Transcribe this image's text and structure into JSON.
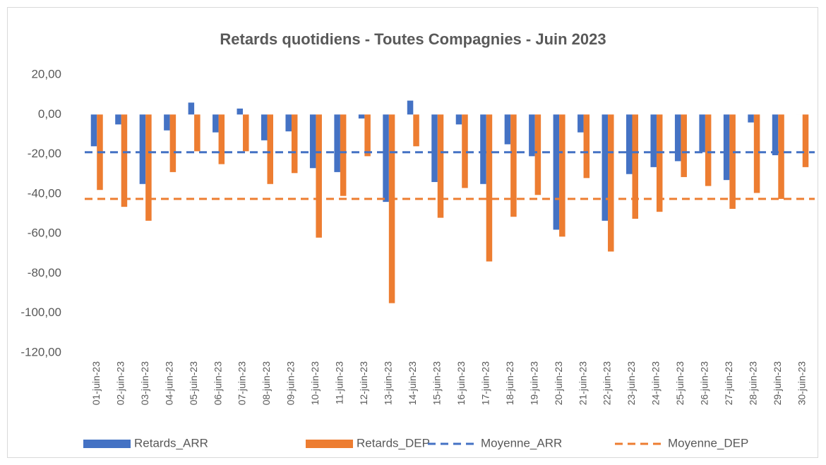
{
  "chart_data": {
    "type": "bar",
    "title": "Retards quotidiens - Toutes Compagnies - Juin 2023",
    "categories": [
      "01-juin-23",
      "02-juin-23",
      "03-juin-23",
      "04-juin-23",
      "05-juin-23",
      "06-juin-23",
      "07-juin-23",
      "08-juin-23",
      "09-juin-23",
      "10-juin-23",
      "11-juin-23",
      "12-juin-23",
      "13-juin-23",
      "14-juin-23",
      "15-juin-23",
      "16-juin-23",
      "17-juin-23",
      "18-juin-23",
      "19-juin-23",
      "20-juin-23",
      "21-juin-23",
      "22-juin-23",
      "23-juin-23",
      "24-juin-23",
      "25-juin-23",
      "26-juin-23",
      "27-juin-23",
      "28-juin-23",
      "29-juin-23",
      "30-juin-23"
    ],
    "series": [
      {
        "name": "Retards_ARR",
        "type": "bar",
        "color": "#4472c4",
        "values": [
          -16,
          -5,
          -35,
          -8,
          6,
          -9,
          3,
          -13,
          -8.5,
          -27,
          -29,
          -2,
          -44,
          7,
          -34,
          -5,
          -35,
          -15,
          -21,
          -58,
          -9,
          -53.5,
          -30,
          -26.5,
          -23.5,
          -19,
          -33,
          -4,
          -20.5,
          0
        ]
      },
      {
        "name": "Retards_DEP",
        "type": "bar",
        "color": "#ed7d31",
        "values": [
          -38,
          -46.5,
          -53.5,
          -29,
          -18.5,
          -25,
          -18.5,
          -35,
          -29.5,
          -62,
          -41,
          -21,
          -95,
          -16,
          -52,
          -37,
          -74,
          -51.5,
          -40.5,
          -61.5,
          -32,
          -69,
          -52.5,
          -49,
          -31.5,
          -36,
          -47.5,
          -39.5,
          -42.5,
          -26.5
        ]
      },
      {
        "name": "Moyenne_ARR",
        "type": "line",
        "dashed": true,
        "color": "#4472c4",
        "values": [
          -19,
          -19,
          -19,
          -19,
          -19,
          -19,
          -19,
          -19,
          -19,
          -19,
          -19,
          -19,
          -19,
          -19,
          -19,
          -19,
          -19,
          -19,
          -19,
          -19,
          -19,
          -19,
          -19,
          -19,
          -19,
          -19,
          -19,
          -19,
          -19,
          -19
        ]
      },
      {
        "name": "Moyenne_DEP",
        "type": "line",
        "dashed": true,
        "color": "#ed7d31",
        "values": [
          -42.5,
          -42.5,
          -42.5,
          -42.5,
          -42.5,
          -42.5,
          -42.5,
          -42.5,
          -42.5,
          -42.5,
          -42.5,
          -42.5,
          -42.5,
          -42.5,
          -42.5,
          -42.5,
          -42.5,
          -42.5,
          -42.5,
          -42.5,
          -42.5,
          -42.5,
          -42.5,
          -42.5,
          -42.5,
          -42.5,
          -42.5,
          -42.5,
          -42.5,
          -42.5
        ]
      }
    ],
    "ylim": [
      -120,
      20
    ],
    "yticks": [
      {
        "value": -120,
        "label": "-120,00"
      },
      {
        "value": -100,
        "label": "-100,00"
      },
      {
        "value": -80,
        "label": "-80,00"
      },
      {
        "value": -60,
        "label": "-60,00"
      },
      {
        "value": -40,
        "label": "-40,00"
      },
      {
        "value": -20,
        "label": "-20,00"
      },
      {
        "value": 0,
        "label": "0,00"
      },
      {
        "value": 20,
        "label": "20,00"
      }
    ],
    "grid": false,
    "legend": "bottom"
  }
}
